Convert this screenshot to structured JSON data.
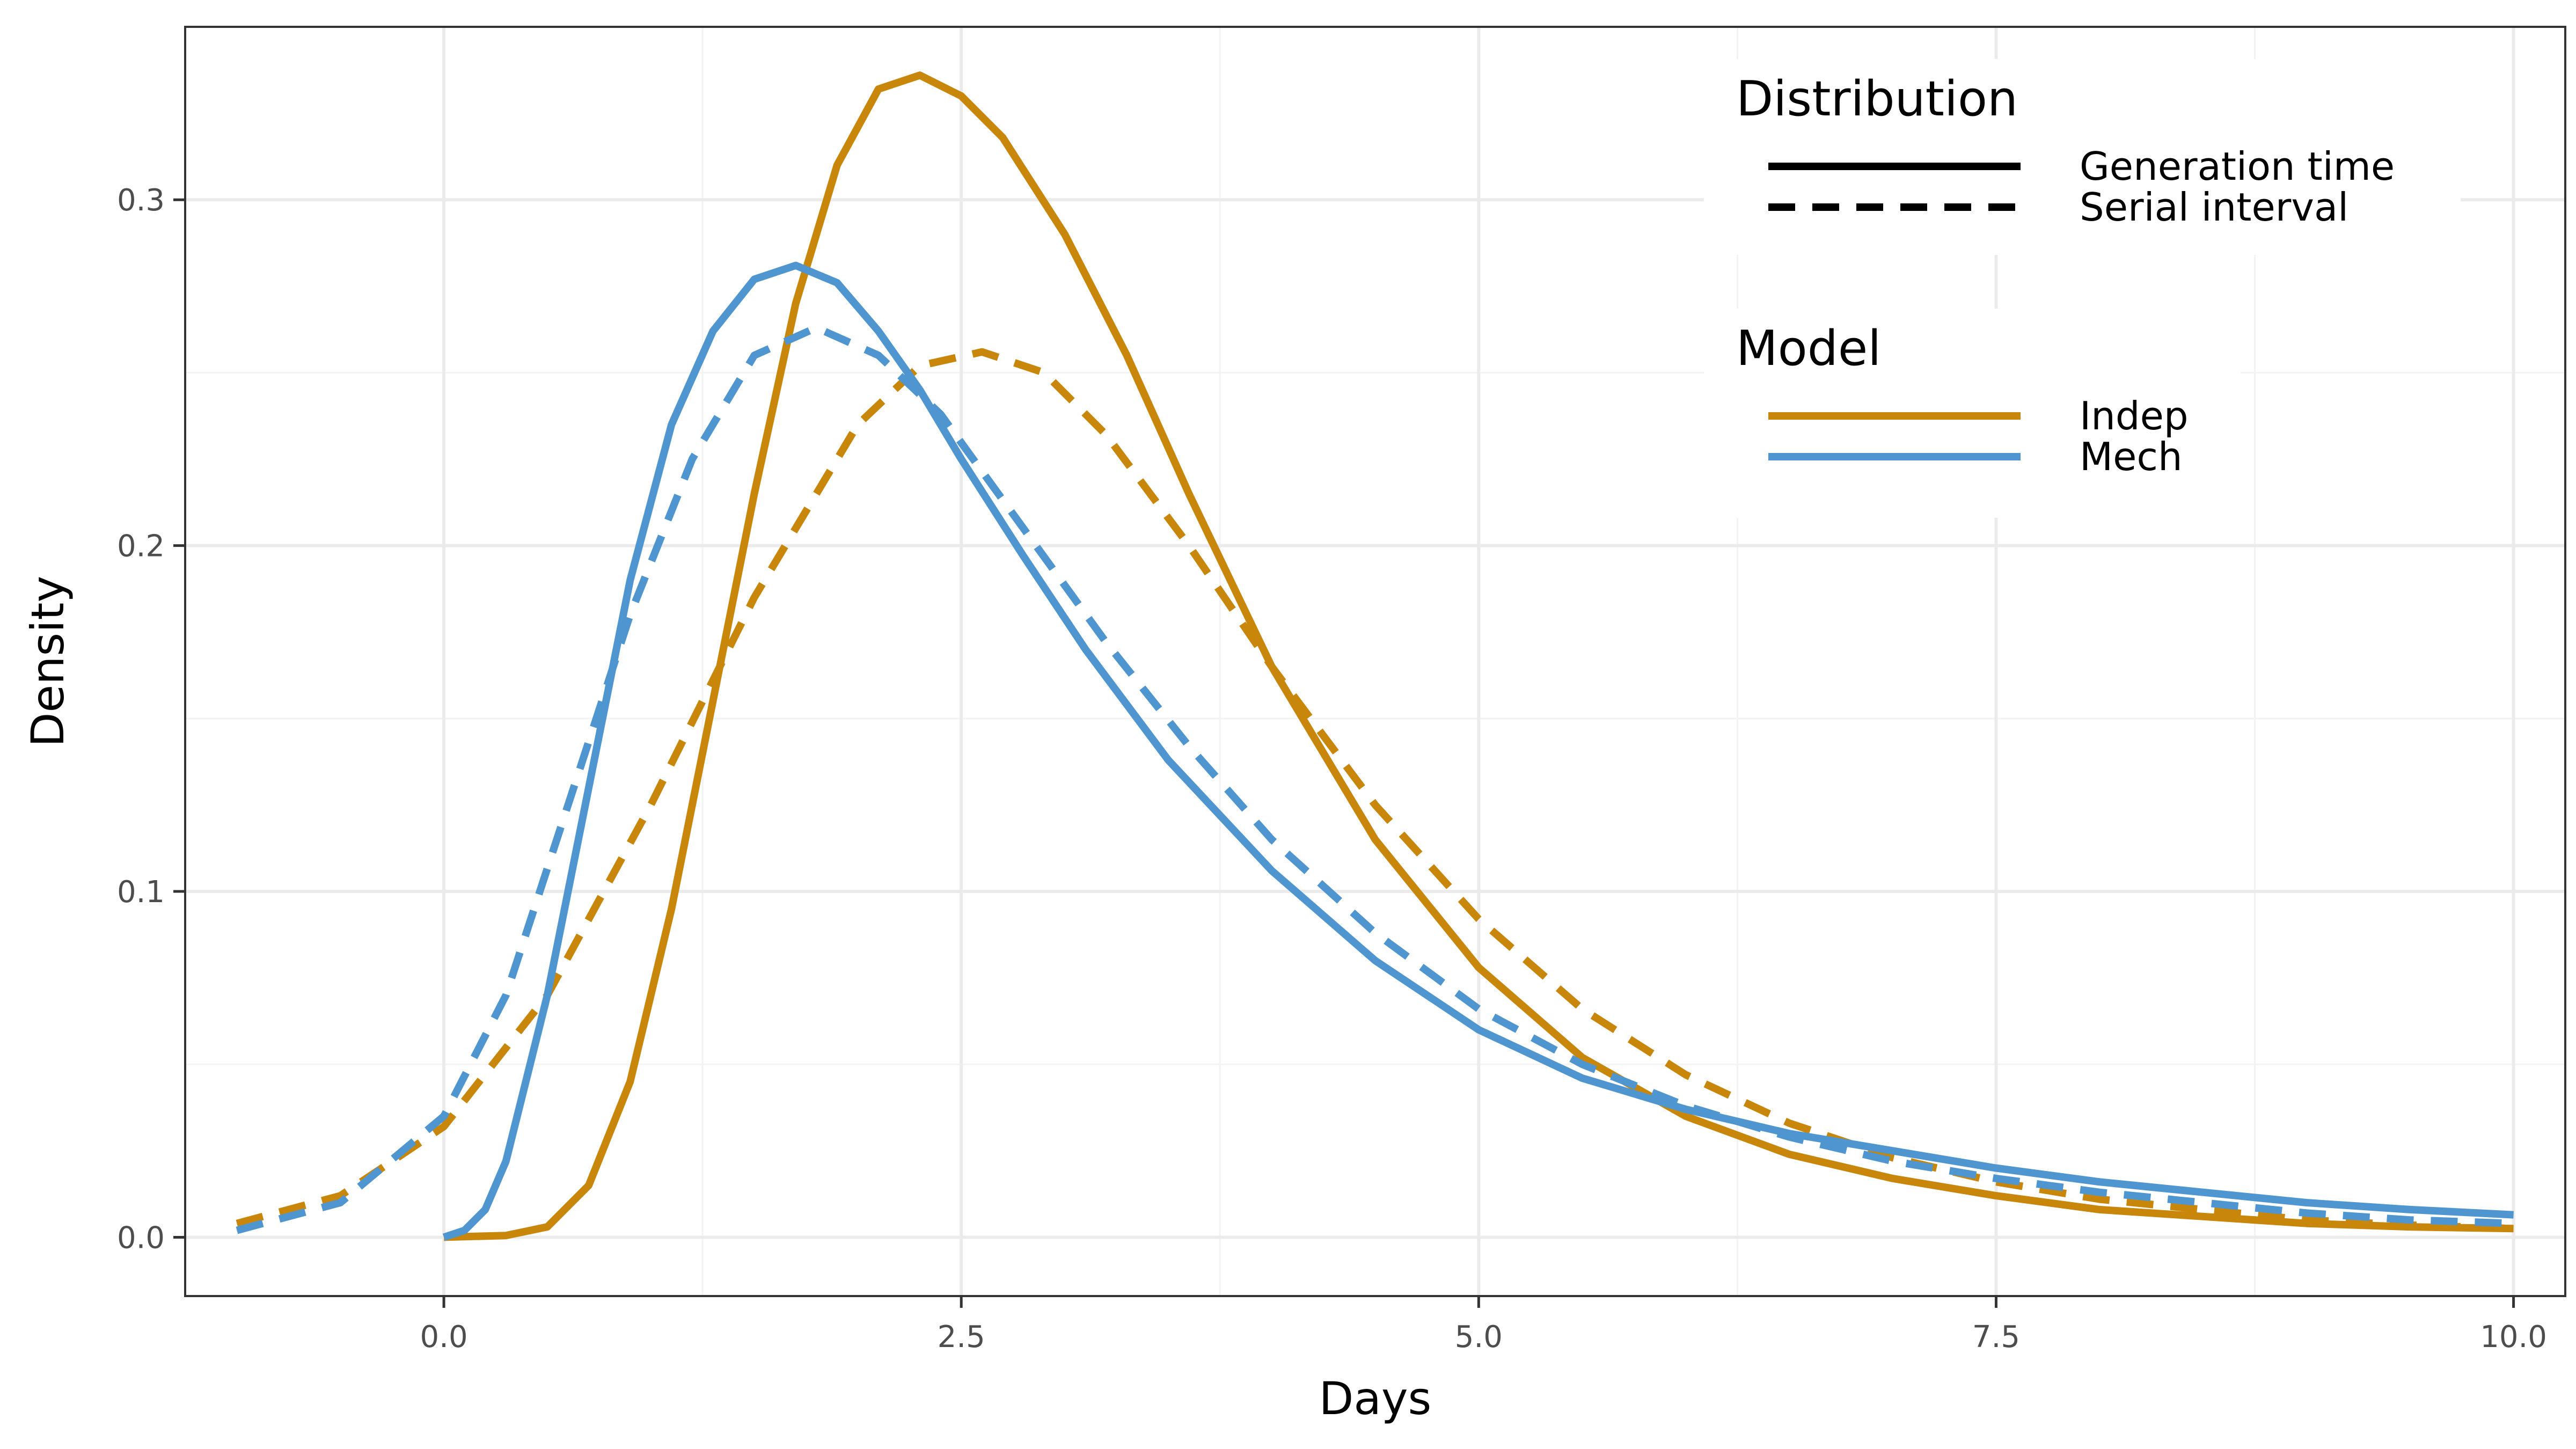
{
  "chart_data": {
    "type": "line",
    "xlabel": "Days",
    "ylabel": "Density",
    "xlim": [
      -1.25,
      10.25
    ],
    "ylim": [
      -0.017,
      0.35
    ],
    "x_ticks": [
      0.0,
      2.5,
      5.0,
      7.5,
      10.0
    ],
    "x_tick_labels": [
      "0.0",
      "2.5",
      "5.0",
      "7.5",
      "10.0"
    ],
    "y_ticks": [
      0.0,
      0.1,
      0.2,
      0.3
    ],
    "y_tick_labels": [
      "0.0",
      "0.1",
      "0.2",
      "0.3"
    ],
    "grid": true,
    "legend_placement": "top-right",
    "legends": [
      {
        "title": "Distribution",
        "entries": [
          {
            "label": "Generation time",
            "dash": "solid"
          },
          {
            "label": "Serial interval",
            "dash": "dashed"
          }
        ]
      },
      {
        "title": "Model",
        "entries": [
          {
            "label": "Indep",
            "color": "#C8860A"
          },
          {
            "label": "Mech",
            "color": "#4F96D0"
          }
        ]
      }
    ],
    "series": [
      {
        "model": "Indep",
        "distribution": "Generation time",
        "color": "#C8860A",
        "dash": "solid",
        "x": [
          0,
          0.3,
          0.5,
          0.7,
          0.9,
          1.1,
          1.3,
          1.5,
          1.7,
          1.9,
          2.1,
          2.3,
          2.5,
          2.7,
          3.0,
          3.3,
          3.6,
          4.0,
          4.5,
          5.0,
          5.5,
          6.0,
          6.5,
          7.0,
          7.5,
          8.0,
          8.5,
          9.0,
          9.5,
          10.0
        ],
        "y": [
          0,
          0.0005,
          0.003,
          0.015,
          0.045,
          0.095,
          0.155,
          0.215,
          0.27,
          0.31,
          0.332,
          0.336,
          0.33,
          0.318,
          0.29,
          0.255,
          0.215,
          0.165,
          0.115,
          0.078,
          0.052,
          0.035,
          0.024,
          0.017,
          0.012,
          0.008,
          0.006,
          0.004,
          0.003,
          0.0025
        ]
      },
      {
        "model": "Indep",
        "distribution": "Serial interval",
        "color": "#C8860A",
        "dash": "dashed",
        "x": [
          -1.0,
          -0.5,
          0,
          0.5,
          1.0,
          1.5,
          2.0,
          2.3,
          2.6,
          2.9,
          3.2,
          3.6,
          4.0,
          4.5,
          5.0,
          5.5,
          6.0,
          6.5,
          7.0,
          7.5,
          8.0,
          8.5,
          9.0,
          9.5,
          10.0
        ],
        "y": [
          0.004,
          0.012,
          0.032,
          0.07,
          0.125,
          0.185,
          0.235,
          0.252,
          0.256,
          0.25,
          0.232,
          0.2,
          0.165,
          0.125,
          0.092,
          0.066,
          0.047,
          0.033,
          0.023,
          0.016,
          0.011,
          0.008,
          0.005,
          0.0035,
          0.0025
        ]
      },
      {
        "model": "Mech",
        "distribution": "Generation time",
        "color": "#4F96D0",
        "dash": "solid",
        "x": [
          0,
          0.1,
          0.2,
          0.3,
          0.5,
          0.7,
          0.9,
          1.1,
          1.3,
          1.5,
          1.7,
          1.9,
          2.1,
          2.3,
          2.5,
          2.8,
          3.1,
          3.5,
          4.0,
          4.5,
          5.0,
          5.5,
          6.0,
          6.5,
          7.0,
          7.5,
          8.0,
          8.5,
          9.0,
          9.5,
          10.0
        ],
        "y": [
          0,
          0.002,
          0.008,
          0.022,
          0.07,
          0.13,
          0.19,
          0.235,
          0.262,
          0.277,
          0.281,
          0.276,
          0.262,
          0.245,
          0.225,
          0.197,
          0.17,
          0.138,
          0.106,
          0.08,
          0.06,
          0.046,
          0.037,
          0.03,
          0.025,
          0.02,
          0.016,
          0.013,
          0.01,
          0.008,
          0.0065
        ]
      },
      {
        "model": "Mech",
        "distribution": "Serial interval",
        "color": "#4F96D0",
        "dash": "dashed",
        "x": [
          -1.0,
          -0.5,
          0,
          0.3,
          0.6,
          0.9,
          1.2,
          1.5,
          1.8,
          2.1,
          2.4,
          2.8,
          3.2,
          3.6,
          4.0,
          4.5,
          5.0,
          5.5,
          6.0,
          6.5,
          7.0,
          7.5,
          8.0,
          8.5,
          9.0,
          9.5,
          10.0
        ],
        "y": [
          0.002,
          0.01,
          0.035,
          0.07,
          0.125,
          0.18,
          0.225,
          0.255,
          0.263,
          0.255,
          0.238,
          0.205,
          0.172,
          0.142,
          0.115,
          0.088,
          0.066,
          0.05,
          0.038,
          0.029,
          0.022,
          0.017,
          0.013,
          0.01,
          0.007,
          0.005,
          0.004
        ]
      }
    ]
  }
}
